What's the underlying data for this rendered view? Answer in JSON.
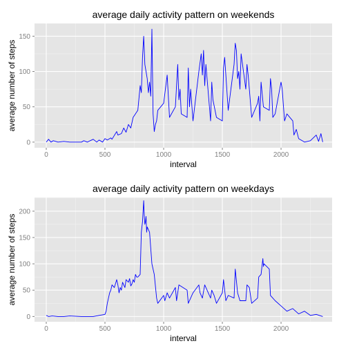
{
  "colors": {
    "panel_background": "#e5e5e5",
    "grid_major": "#ffffff",
    "grid_minor": "#f2f2f2",
    "line": "#0000ff",
    "tick_label": "#7f7f7f"
  },
  "chart_data": [
    {
      "type": "line",
      "title": "average daily activity pattern on weekends",
      "xlabel": "interval",
      "ylabel": "average number of steps",
      "xlim": [
        -100,
        2435
      ],
      "ylim": [
        -8,
        168
      ],
      "xticks": [
        0,
        500,
        1000,
        1500,
        2000
      ],
      "yticks": [
        0,
        50,
        100,
        150
      ],
      "grid": true,
      "series": [
        {
          "x": [
            0,
            20,
            40,
            60,
            100,
            150,
            200,
            250,
            300,
            320,
            350,
            400,
            430,
            450,
            480,
            500,
            520,
            550,
            560,
            600,
            610,
            640,
            660,
            680,
            700,
            720,
            740,
            760,
            780,
            800,
            810,
            820,
            830,
            840,
            850,
            860,
            870,
            880,
            890,
            900,
            910,
            920,
            930,
            940,
            950,
            1000,
            1030,
            1050,
            1100,
            1120,
            1130,
            1140,
            1150,
            1200,
            1210,
            1220,
            1230,
            1250,
            1300,
            1320,
            1330,
            1340,
            1350,
            1360,
            1400,
            1410,
            1420,
            1450,
            1500,
            1510,
            1520,
            1550,
            1600,
            1610,
            1620,
            1630,
            1640,
            1650,
            1660,
            1700,
            1710,
            1720,
            1750,
            1800,
            1810,
            1820,
            1830,
            1850,
            1900,
            1910,
            1920,
            1930,
            1950,
            2000,
            2010,
            2030,
            2050,
            2100,
            2110,
            2130,
            2150,
            2200,
            2250,
            2300,
            2320,
            2340,
            2355
          ],
          "y": [
            0,
            4,
            0,
            2,
            0,
            1,
            0,
            0,
            0,
            2,
            0,
            4,
            0,
            3,
            0,
            5,
            3,
            6,
            4,
            15,
            10,
            12,
            20,
            14,
            25,
            20,
            35,
            40,
            45,
            80,
            70,
            120,
            150,
            110,
            100,
            90,
            70,
            85,
            65,
            160,
            40,
            15,
            25,
            30,
            45,
            55,
            95,
            35,
            50,
            110,
            60,
            75,
            40,
            35,
            105,
            50,
            75,
            30,
            100,
            125,
            95,
            130,
            80,
            110,
            30,
            85,
            60,
            35,
            30,
            105,
            120,
            45,
            110,
            140,
            130,
            90,
            100,
            75,
            125,
            75,
            110,
            95,
            35,
            55,
            65,
            30,
            85,
            50,
            45,
            90,
            75,
            35,
            40,
            85,
            75,
            30,
            40,
            30,
            10,
            18,
            5,
            0,
            2,
            10,
            1,
            12,
            0
          ]
        }
      ]
    },
    {
      "type": "line",
      "title": "average daily activity pattern on weekdays",
      "xlabel": "interval",
      "ylabel": "average number of steps",
      "xlim": [
        -100,
        2435
      ],
      "ylim": [
        -10,
        226
      ],
      "xticks": [
        0,
        500,
        1000,
        1500,
        2000
      ],
      "yticks": [
        0,
        50,
        100,
        150,
        200
      ],
      "grid": true,
      "series": [
        {
          "x": [
            0,
            20,
            50,
            100,
            150,
            200,
            300,
            400,
            450,
            500,
            510,
            520,
            530,
            540,
            550,
            560,
            580,
            600,
            610,
            620,
            630,
            640,
            650,
            660,
            670,
            680,
            700,
            710,
            720,
            730,
            740,
            750,
            760,
            770,
            780,
            800,
            810,
            820,
            830,
            835,
            840,
            845,
            850,
            855,
            860,
            880,
            900,
            920,
            940,
            950,
            1000,
            1010,
            1030,
            1050,
            1100,
            1110,
            1130,
            1200,
            1210,
            1230,
            1250,
            1300,
            1310,
            1330,
            1350,
            1400,
            1410,
            1430,
            1450,
            1500,
            1510,
            1530,
            1550,
            1600,
            1610,
            1630,
            1650,
            1700,
            1710,
            1730,
            1750,
            1800,
            1810,
            1830,
            1845,
            1850,
            1855,
            1900,
            1910,
            1930,
            1950,
            2000,
            2050,
            2100,
            2150,
            2200,
            2250,
            2300,
            2355
          ],
          "y": [
            2,
            0,
            1,
            0,
            0,
            1,
            0,
            0,
            2,
            4,
            10,
            25,
            35,
            45,
            50,
            60,
            55,
            70,
            60,
            45,
            55,
            50,
            65,
            60,
            55,
            70,
            65,
            72,
            58,
            62,
            70,
            65,
            80,
            75,
            75,
            80,
            160,
            180,
            220,
            190,
            175,
            180,
            190,
            160,
            170,
            160,
            100,
            80,
            35,
            25,
            40,
            30,
            45,
            35,
            55,
            30,
            60,
            50,
            25,
            35,
            45,
            60,
            45,
            35,
            60,
            35,
            50,
            40,
            25,
            45,
            70,
            30,
            40,
            35,
            90,
            45,
            30,
            30,
            60,
            55,
            25,
            35,
            75,
            80,
            110,
            95,
            100,
            90,
            40,
            35,
            30,
            20,
            10,
            15,
            5,
            10,
            2,
            4,
            0
          ]
        }
      ]
    }
  ]
}
